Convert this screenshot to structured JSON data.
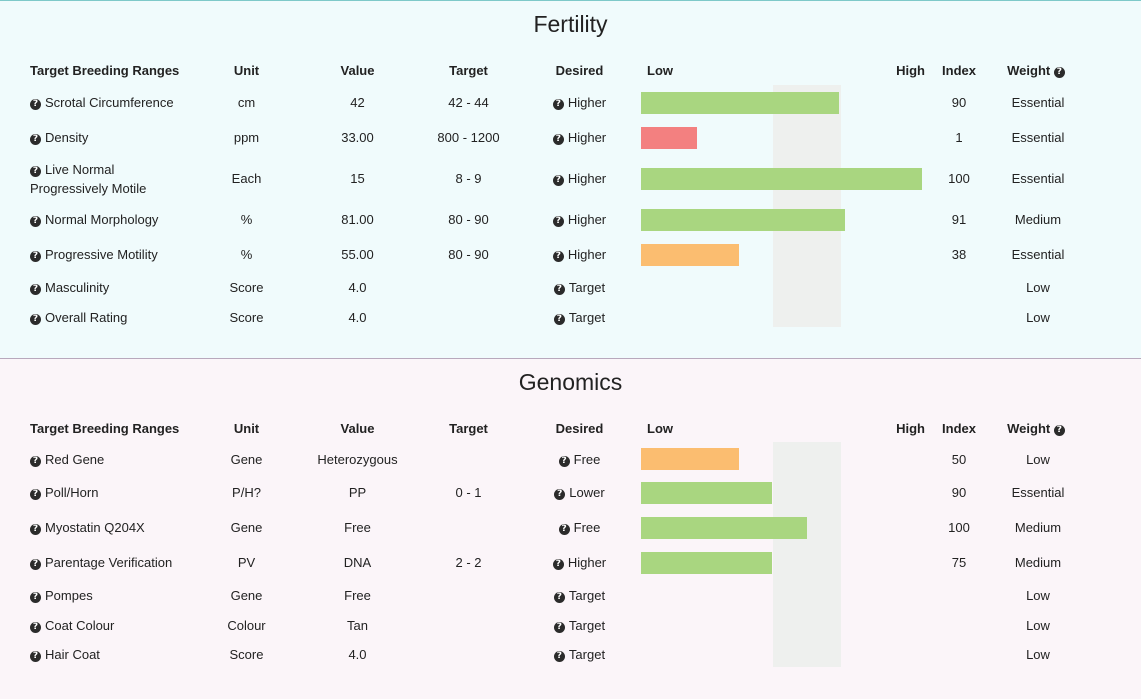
{
  "colors": {
    "good": "#a9d680",
    "bad": "#f38080",
    "warn": "#fbbd70",
    "band": "#eef0ee"
  },
  "fertility": {
    "title": "Fertility",
    "headers": {
      "name": "Target Breeding Ranges",
      "unit": "Unit",
      "value": "Value",
      "target": "Target",
      "desired": "Desired",
      "low": "Low",
      "high": "High",
      "index": "Index",
      "weight": "Weight"
    },
    "rows": [
      {
        "name": "Scrotal Circumference",
        "unit": "cm",
        "value": "42",
        "target": "42 - 44",
        "desired": "Higher",
        "index": "90",
        "weight": "Essential",
        "bar": 0.706,
        "bar_color": "green"
      },
      {
        "name": "Density",
        "unit": "ppm",
        "value": "33.00",
        "target": "800 - 1200",
        "desired": "Higher",
        "index": "1",
        "weight": "Essential",
        "bar": 0.2,
        "bar_color": "red"
      },
      {
        "name": "Live Normal Progressively Motile",
        "unit": "Each",
        "value": "15",
        "target": "8 - 9",
        "desired": "Higher",
        "index": "100",
        "weight": "Essential",
        "bar": 1.0,
        "bar_color": "green"
      },
      {
        "name": "Normal Morphology",
        "unit": "%",
        "value": "81.00",
        "target": "80 - 90",
        "desired": "Higher",
        "index": "91",
        "weight": "Medium",
        "bar": 0.725,
        "bar_color": "green"
      },
      {
        "name": "Progressive Motility",
        "unit": "%",
        "value": "55.00",
        "target": "80 - 90",
        "desired": "Higher",
        "index": "38",
        "weight": "Essential",
        "bar": 0.35,
        "bar_color": "orange"
      },
      {
        "name": "Masculinity",
        "unit": "Score",
        "value": "4.0",
        "target": "",
        "desired": "Target",
        "index": "",
        "weight": "Low",
        "bar": 0,
        "bar_color": ""
      },
      {
        "name": "Overall Rating",
        "unit": "Score",
        "value": "4.0",
        "target": "",
        "desired": "Target",
        "index": "",
        "weight": "Low",
        "bar": 0,
        "bar_color": ""
      }
    ]
  },
  "genomics": {
    "title": "Genomics",
    "headers": {
      "name": "Target Breeding Ranges",
      "unit": "Unit",
      "value": "Value",
      "target": "Target",
      "desired": "Desired",
      "low": "Low",
      "high": "High",
      "index": "Index",
      "weight": "Weight"
    },
    "rows": [
      {
        "name": "Red Gene",
        "unit": "Gene",
        "value": "Heterozygous",
        "target": "",
        "desired": "Free",
        "index": "50",
        "weight": "Low",
        "bar": 0.35,
        "bar_color": "orange"
      },
      {
        "name": "Poll/Horn",
        "unit": "P/H?",
        "value": "PP",
        "target": "0 - 1",
        "desired": "Lower",
        "index": "90",
        "weight": "Essential",
        "bar": 0.467,
        "bar_color": "green"
      },
      {
        "name": "Myostatin Q204X",
        "unit": "Gene",
        "value": "Free",
        "target": "",
        "desired": "Free",
        "index": "100",
        "weight": "Medium",
        "bar": 0.589,
        "bar_color": "green"
      },
      {
        "name": "Parentage Verification",
        "unit": "PV",
        "value": "DNA",
        "target": "2 - 2",
        "desired": "Higher",
        "index": "75",
        "weight": "Medium",
        "bar": 0.467,
        "bar_color": "green"
      },
      {
        "name": "Pompes",
        "unit": "Gene",
        "value": "Free",
        "target": "",
        "desired": "Target",
        "index": "",
        "weight": "Low",
        "bar": 0,
        "bar_color": ""
      },
      {
        "name": "Coat Colour",
        "unit": "Colour",
        "value": "Tan",
        "target": "",
        "desired": "Target",
        "index": "",
        "weight": "Low",
        "bar": 0,
        "bar_color": ""
      },
      {
        "name": "Hair Coat",
        "unit": "Score",
        "value": "4.0",
        "target": "",
        "desired": "Target",
        "index": "",
        "weight": "Low",
        "bar": 0,
        "bar_color": ""
      }
    ]
  }
}
